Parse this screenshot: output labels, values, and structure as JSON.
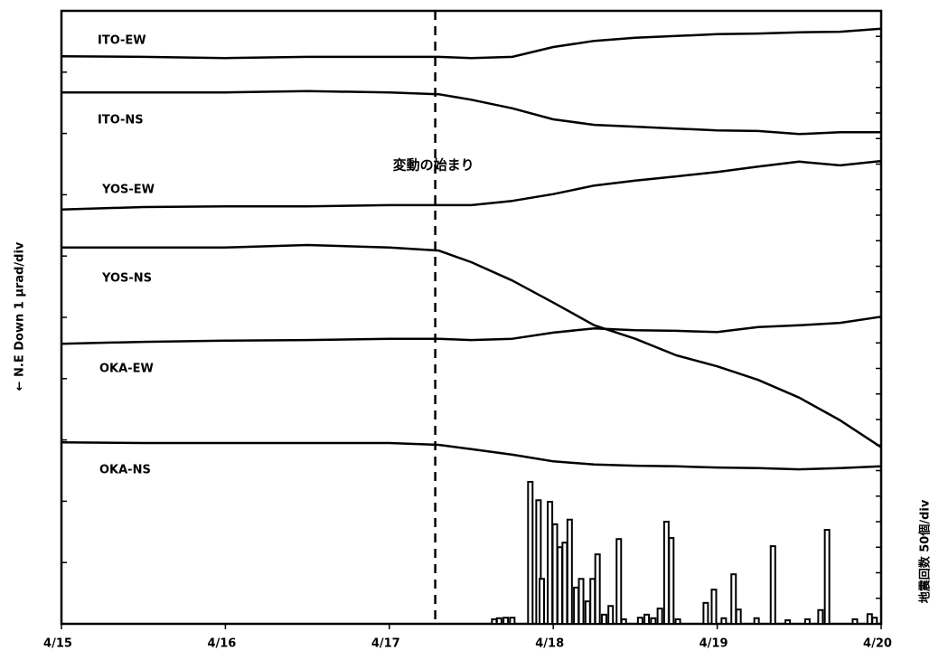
{
  "chart_data": [
    {
      "type": "line",
      "ylabel": "← N.E Down 1 μrad/div",
      "xlim": [
        15,
        20
      ],
      "xticks": [
        {
          "value": 15,
          "label": "4/15"
        },
        {
          "value": 16,
          "label": "4/16"
        },
        {
          "value": 17,
          "label": "4/17"
        },
        {
          "value": 18,
          "label": "4/18"
        },
        {
          "value": 19,
          "label": "4/19"
        },
        {
          "value": 20,
          "label": "4/20"
        }
      ],
      "ylim": [
        0,
        10
      ],
      "yticks": [
        0,
        1,
        2,
        3,
        4,
        5,
        6,
        7,
        8,
        9,
        10
      ],
      "annotation": {
        "text": "変動の始まり",
        "x": 17.28
      },
      "x": [
        15,
        15.5,
        16,
        16.5,
        17,
        17.3,
        17.5,
        17.75,
        18,
        18.25,
        18.5,
        18.75,
        19,
        19.25,
        19.5,
        19.75,
        20
      ],
      "series": [
        {
          "name": "ITO-EW",
          "color": "#000000",
          "values": [
            9.26,
            9.25,
            9.23,
            9.25,
            9.25,
            9.25,
            9.23,
            9.25,
            9.41,
            9.51,
            9.56,
            9.59,
            9.62,
            9.63,
            9.65,
            9.66,
            9.71
          ]
        },
        {
          "name": "ITO-NS",
          "color": "#000000",
          "values": [
            8.67,
            8.67,
            8.67,
            8.69,
            8.67,
            8.64,
            8.55,
            8.41,
            8.23,
            8.14,
            8.11,
            8.08,
            8.05,
            8.04,
            7.99,
            8.02,
            8.02
          ]
        },
        {
          "name": "YOS-EW",
          "color": "#000000",
          "values": [
            6.76,
            6.8,
            6.81,
            6.81,
            6.83,
            6.83,
            6.83,
            6.9,
            7.01,
            7.15,
            7.23,
            7.3,
            7.37,
            7.46,
            7.54,
            7.48,
            7.55
          ]
        },
        {
          "name": "YOS-NS",
          "color": "#000000",
          "values": [
            6.14,
            6.14,
            6.14,
            6.18,
            6.14,
            6.09,
            5.9,
            5.6,
            5.24,
            4.87,
            4.65,
            4.38,
            4.2,
            3.98,
            3.69,
            3.32,
            2.88
          ]
        },
        {
          "name": "OKA-EW",
          "color": "#000000",
          "values": [
            4.57,
            4.6,
            4.62,
            4.63,
            4.65,
            4.65,
            4.63,
            4.65,
            4.75,
            4.82,
            4.79,
            4.78,
            4.76,
            4.84,
            4.87,
            4.91,
            5.01
          ]
        },
        {
          "name": "OKA-NS",
          "color": "#000000",
          "values": [
            2.96,
            2.95,
            2.95,
            2.95,
            2.95,
            2.92,
            2.85,
            2.76,
            2.65,
            2.6,
            2.58,
            2.57,
            2.55,
            2.54,
            2.52,
            2.54,
            2.57
          ]
        }
      ]
    },
    {
      "type": "bar",
      "y2label": "地震回数 50個/div",
      "color": "#000000",
      "y2lim": [
        0,
        1200
      ],
      "y2ticks": [
        0,
        50,
        100,
        150,
        200,
        250,
        300,
        350,
        400,
        450,
        500,
        550,
        600,
        650,
        700,
        750,
        800,
        850,
        900,
        950,
        1000,
        1050,
        1100,
        1150,
        1200
      ],
      "x": [
        17.64,
        17.67,
        17.71,
        17.75,
        17.86,
        17.91,
        17.93,
        17.98,
        18.01,
        18.04,
        18.07,
        18.1,
        18.14,
        18.17,
        18.21,
        18.24,
        18.27,
        18.31,
        18.35,
        18.4,
        18.43,
        18.53,
        18.57,
        18.61,
        18.65,
        18.69,
        18.72,
        18.76,
        18.93,
        18.98,
        19.04,
        19.1,
        19.13,
        19.24,
        19.34,
        19.43,
        19.55,
        19.63,
        19.67,
        19.84,
        19.93,
        19.96
      ],
      "values": [
        9,
        11,
        12,
        12,
        278,
        242,
        88,
        239,
        195,
        150,
        159,
        204,
        71,
        88,
        44,
        88,
        136,
        18,
        35,
        166,
        9,
        12,
        18,
        11,
        30,
        200,
        168,
        9,
        41,
        67,
        11,
        97,
        28,
        11,
        152,
        7,
        9,
        27,
        184,
        9,
        19,
        12
      ]
    }
  ]
}
